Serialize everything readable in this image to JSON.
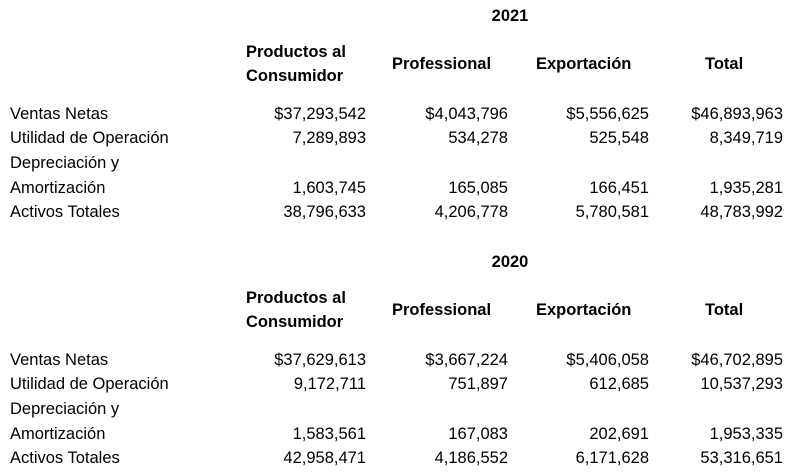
{
  "tables": [
    {
      "year": "2021",
      "headers": {
        "col1_line1": "Productos al",
        "col1_line2": "Consumidor",
        "col2": "Professional",
        "col3": "Exportación",
        "col4": "Total"
      },
      "rows": [
        {
          "label": "Ventas Netas",
          "values": [
            "$37,293,542",
            "$4,043,796",
            "$5,556,625",
            "$46,893,963"
          ]
        },
        {
          "label": "Utilidad de Operación",
          "values": [
            "7,289,893",
            "534,278",
            "525,548",
            "8,349,719"
          ]
        },
        {
          "label_line1": "Depreciación y",
          "label": "Amortización",
          "values": [
            "1,603,745",
            "165,085",
            "166,451",
            "1,935,281"
          ]
        },
        {
          "label": "Activos Totales",
          "values": [
            "38,796,633",
            "4,206,778",
            "5,780,581",
            "48,783,992"
          ]
        }
      ]
    },
    {
      "year": "2020",
      "headers": {
        "col1_line1": "Productos al",
        "col1_line2": "Consumidor",
        "col2": "Professional",
        "col3": "Exportación",
        "col4": "Total"
      },
      "rows": [
        {
          "label": "Ventas Netas",
          "values": [
            "$37,629,613",
            "$3,667,224",
            "$5,406,058",
            "$46,702,895"
          ]
        },
        {
          "label": "Utilidad de Operación",
          "values": [
            "9,172,711",
            "751,897",
            "612,685",
            "10,537,293"
          ]
        },
        {
          "label_line1": "Depreciación y",
          "label": "Amortización",
          "values": [
            "1,583,561",
            "167,083",
            "202,691",
            "1,953,335"
          ]
        },
        {
          "label": "Activos Totales",
          "values": [
            "42,958,471",
            "4,186,552",
            "6,171,628",
            "53,316,651"
          ]
        }
      ]
    }
  ]
}
